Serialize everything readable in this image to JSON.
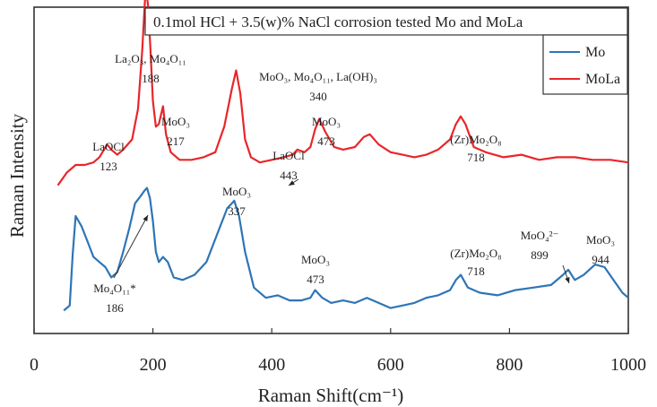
{
  "chart_data": {
    "type": "line",
    "title": "0.1mol HCl + 3.5(w)% NaCl corrosion tested Mo and MoLa",
    "xlabel": "Raman Shift(cm⁻¹)",
    "ylabel": "Raman Intensity",
    "xlim": [
      0,
      1000
    ],
    "xticks": [
      "0",
      "200",
      "400",
      "600",
      "800",
      "1000"
    ],
    "y_ticks_shown": false,
    "grid": false,
    "legend_position": "top-right",
    "series": [
      {
        "name": "Mo",
        "color": "#2e75b6",
        "x": [
          50,
          60,
          65,
          70,
          80,
          90,
          100,
          110,
          120,
          130,
          140,
          150,
          160,
          170,
          180,
          186,
          190,
          195,
          200,
          205,
          210,
          217,
          225,
          235,
          250,
          270,
          290,
          310,
          325,
          337,
          345,
          355,
          370,
          390,
          410,
          430,
          450,
          465,
          473,
          485,
          500,
          520,
          540,
          560,
          580,
          600,
          620,
          640,
          660,
          680,
          700,
          710,
          718,
          730,
          750,
          780,
          810,
          840,
          870,
          890,
          899,
          910,
          925,
          944,
          960,
          975,
          990,
          1000
        ],
        "values": [
          0.03,
          0.05,
          0.25,
          0.4,
          0.36,
          0.3,
          0.24,
          0.22,
          0.2,
          0.16,
          0.18,
          0.26,
          0.35,
          0.45,
          0.48,
          0.5,
          0.51,
          0.47,
          0.38,
          0.26,
          0.22,
          0.24,
          0.22,
          0.16,
          0.15,
          0.17,
          0.22,
          0.34,
          0.43,
          0.46,
          0.4,
          0.26,
          0.12,
          0.08,
          0.09,
          0.07,
          0.07,
          0.08,
          0.11,
          0.08,
          0.06,
          0.07,
          0.06,
          0.08,
          0.06,
          0.04,
          0.05,
          0.06,
          0.08,
          0.09,
          0.11,
          0.15,
          0.17,
          0.12,
          0.1,
          0.09,
          0.11,
          0.12,
          0.13,
          0.17,
          0.19,
          0.15,
          0.17,
          0.21,
          0.2,
          0.15,
          0.1,
          0.08
        ]
      },
      {
        "name": "MoLa",
        "color": "#e8262a",
        "x": [
          40,
          55,
          70,
          85,
          100,
          110,
          123,
          130,
          140,
          150,
          165,
          175,
          182,
          188,
          192,
          196,
          200,
          205,
          210,
          217,
          222,
          230,
          245,
          265,
          285,
          305,
          320,
          333,
          340,
          347,
          355,
          365,
          380,
          400,
          420,
          435,
          443,
          455,
          465,
          473,
          480,
          490,
          505,
          520,
          540,
          555,
          565,
          580,
          600,
          620,
          640,
          660,
          680,
          700,
          710,
          718,
          726,
          740,
          760,
          790,
          820,
          850,
          880,
          910,
          940,
          970,
          1000
        ],
        "values": [
          0.52,
          0.57,
          0.6,
          0.6,
          0.61,
          0.63,
          0.68,
          0.66,
          0.64,
          0.66,
          0.7,
          0.82,
          1.05,
          1.3,
          1.22,
          1.05,
          0.85,
          0.75,
          0.76,
          0.83,
          0.72,
          0.65,
          0.62,
          0.62,
          0.63,
          0.65,
          0.75,
          0.9,
          0.97,
          0.88,
          0.7,
          0.63,
          0.61,
          0.62,
          0.63,
          0.64,
          0.66,
          0.65,
          0.67,
          0.74,
          0.78,
          0.73,
          0.67,
          0.66,
          0.67,
          0.71,
          0.72,
          0.68,
          0.65,
          0.64,
          0.63,
          0.64,
          0.66,
          0.7,
          0.76,
          0.79,
          0.76,
          0.67,
          0.65,
          0.63,
          0.64,
          0.62,
          0.63,
          0.63,
          0.62,
          0.62,
          0.61
        ]
      }
    ],
    "annotations": [
      {
        "main": "LaOCl",
        "num": "123",
        "series": "MoLa",
        "x": 123
      },
      {
        "main": "La₂O₃, Mo₄O₁₁",
        "num": "188",
        "series": "MoLa",
        "x": 188
      },
      {
        "main": "MoO₃",
        "num": "217",
        "series": "MoLa",
        "x": 217
      },
      {
        "main": "MoO₃, Mo₄O₁₁, La(OH)₃",
        "num": "340",
        "series": "MoLa",
        "x": 340
      },
      {
        "main": "LaOCl",
        "num": "443",
        "series": "MoLa",
        "x": 443
      },
      {
        "main": "MoO₃",
        "num": "473",
        "series": "MoLa",
        "x": 473
      },
      {
        "main": "(Zr)Mo₂O₈",
        "num": "718",
        "series": "MoLa",
        "x": 718
      },
      {
        "main": "MoO₃",
        "num": "337",
        "series": "Mo",
        "x": 337
      },
      {
        "main": "Mo₄O₁₁*",
        "num": "186",
        "series": "Mo",
        "x": 186
      },
      {
        "main": "MoO₃",
        "num": "473",
        "series": "Mo",
        "x": 473
      },
      {
        "main": "(Zr)Mo₂O₈",
        "num": "718",
        "series": "Mo",
        "x": 718
      },
      {
        "main": "MoO₄²⁻",
        "num": "899",
        "series": "Mo",
        "x": 899
      },
      {
        "main": "MoO₃",
        "num": "944",
        "series": "Mo",
        "x": 944
      }
    ]
  }
}
